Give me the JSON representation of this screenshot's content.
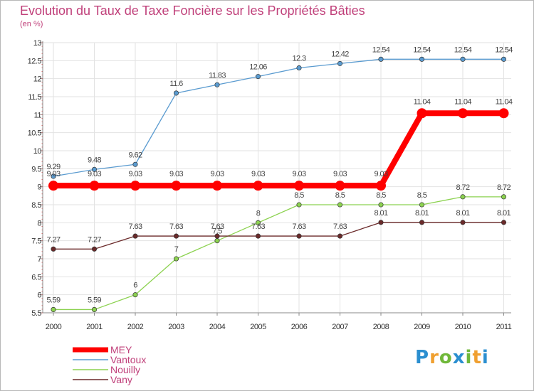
{
  "header": {
    "title": "Evolution du Taux de Taxe Foncière sur les Propriétés Bâties",
    "unit": "(en %)"
  },
  "logo": {
    "text": "Proxiti"
  },
  "chart_data": {
    "type": "line",
    "title": "Evolution du Taux de Taxe Foncière sur les Propriétés Bâties",
    "ylabel": "(en %)",
    "xlabel": "",
    "ylim": [
      5.5,
      13
    ],
    "yticks": [
      "5.5",
      "6",
      "6.5",
      "7",
      "7.5",
      "8",
      "8.5",
      "9",
      "9.5",
      "10",
      "10.5",
      "11",
      "11.5",
      "12",
      "12.5",
      "13"
    ],
    "categories": [
      "2000",
      "2001",
      "2002",
      "2003",
      "2004",
      "2005",
      "2006",
      "2007",
      "2008",
      "2009",
      "2010",
      "2011"
    ],
    "legend_position": "bottom-left",
    "series": [
      {
        "name": "MEY",
        "color": "#ff0000",
        "width": 8,
        "marker": 7,
        "labels": [
          "9.03",
          "9.03",
          "9.03",
          "9.03",
          "9.03",
          "9.03",
          "9.03",
          "9.03",
          "9.03",
          "11.04",
          "11.04",
          "11.04"
        ],
        "values": [
          9.03,
          9.03,
          9.03,
          9.03,
          9.03,
          9.03,
          9.03,
          9.03,
          9.03,
          11.04,
          11.04,
          11.04
        ]
      },
      {
        "name": "Vantoux",
        "color": "#5a9bd0",
        "width": 1.3,
        "marker": 3.2,
        "labels": [
          "9.29",
          "9.48",
          "9.62",
          "11.6",
          "11.83",
          "12.06",
          "12.3",
          "12.42",
          "12.54",
          "12.54",
          "12.54",
          "12.54"
        ],
        "values": [
          9.29,
          9.48,
          9.62,
          11.6,
          11.83,
          12.06,
          12.3,
          12.42,
          12.54,
          12.54,
          12.54,
          12.54
        ]
      },
      {
        "name": "Nouilly",
        "color": "#8cd250",
        "width": 1.3,
        "marker": 3.2,
        "labels": [
          "5.59",
          "5.59",
          "6",
          "7",
          "7.5",
          "8",
          "8.5",
          "8.5",
          "8.5",
          "8.5",
          "8.72",
          "8.72"
        ],
        "values": [
          5.59,
          5.59,
          6,
          7,
          7.5,
          8,
          8.5,
          8.5,
          8.5,
          8.5,
          8.72,
          8.72
        ]
      },
      {
        "name": "Vany",
        "color": "#6b2a2a",
        "width": 1.3,
        "marker": 3.2,
        "labels": [
          "7.27",
          "7.27",
          "7.63",
          "7.63",
          "7.63",
          "7.63",
          "7.63",
          "7.63",
          "8.01",
          "8.01",
          "8.01",
          "8.01"
        ],
        "values": [
          7.27,
          7.27,
          7.63,
          7.63,
          7.63,
          7.63,
          7.63,
          7.63,
          8.01,
          8.01,
          8.01,
          8.01
        ]
      }
    ]
  }
}
